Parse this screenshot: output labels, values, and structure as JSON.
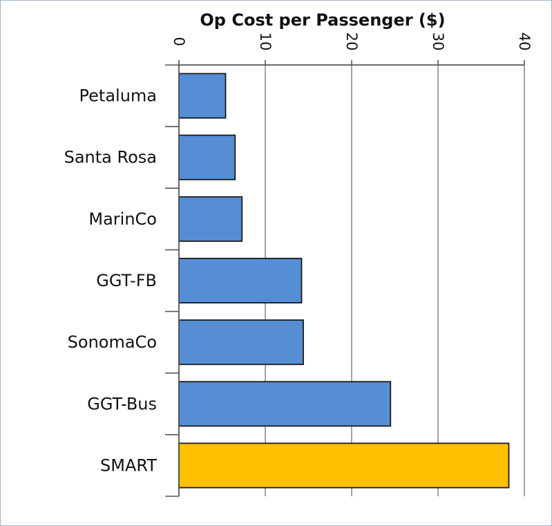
{
  "chart_data": {
    "type": "bar",
    "orientation": "horizontal",
    "title": "Op Cost per Passenger ($)",
    "x_axis_position": "top",
    "tick_label_rotation": 90,
    "xlim": [
      0,
      40
    ],
    "xticks": [
      0,
      10,
      20,
      30,
      40
    ],
    "xtick_labels": [
      "0",
      "10",
      "20",
      "30",
      "40"
    ],
    "grid": true,
    "legend": "none",
    "categories": [
      "Petaluma",
      "Santa Rosa",
      "MarinCo",
      "GGT-FB",
      "SonomaCo",
      "GGT-Bus",
      "SMART"
    ],
    "values": [
      5.4,
      6.5,
      7.3,
      14.2,
      14.4,
      24.5,
      38.2
    ],
    "colors": [
      "#558ed5",
      "#558ed5",
      "#558ed5",
      "#558ed5",
      "#558ed5",
      "#558ed5",
      "#ffc000"
    ]
  }
}
